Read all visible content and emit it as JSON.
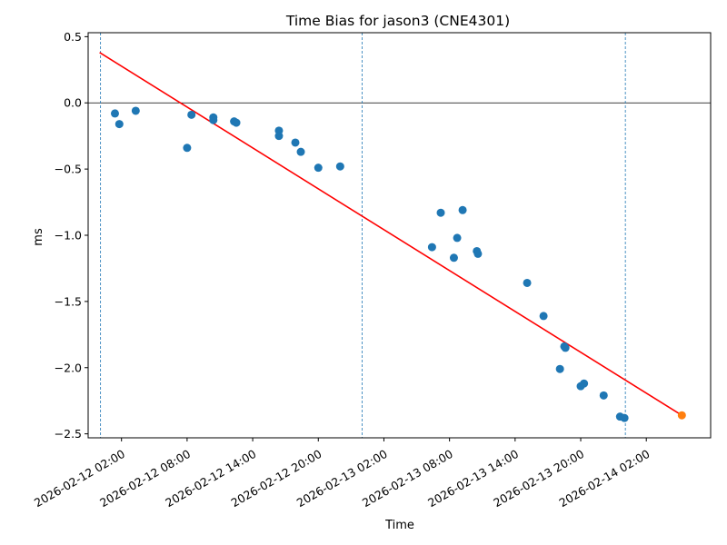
{
  "chart_data": {
    "type": "scatter",
    "title": "Time Bias for jason3 (CNE4301)",
    "xlabel": "Time",
    "ylabel": "ms",
    "x_type": "datetime",
    "xlim": [
      "2026-02-11 22:57",
      "2026-02-14 07:53"
    ],
    "ylim": [
      -2.53,
      0.53
    ],
    "x_ticks": [
      "2026-02-12 02:00",
      "2026-02-12 08:00",
      "2026-02-12 14:00",
      "2026-02-12 20:00",
      "2026-02-13 02:00",
      "2026-02-13 08:00",
      "2026-02-13 14:00",
      "2026-02-13 20:00",
      "2026-02-14 02:00"
    ],
    "y_ticks": [
      0.5,
      0.0,
      -0.5,
      -1.0,
      -1.5,
      -2.0,
      -2.5
    ],
    "y_tick_labels": [
      "0.5",
      "0.0",
      "−0.5",
      "−1.0",
      "−1.5",
      "−2.0",
      "−2.5"
    ],
    "colors": {
      "points": "#1f77b4",
      "fit_line": "#ff0000",
      "predicted": "#ff7f0e",
      "vlines": "#1f77b4",
      "zero_line": "#000000"
    },
    "zero_line": 0,
    "vlines": [
      "2026-02-12 00:05",
      "2026-02-13 00:00",
      "2026-02-14 00:05"
    ],
    "fit_line": {
      "x": [
        "2026-02-12 00:00",
        "2026-02-14 05:15"
      ],
      "y": [
        0.38,
        -2.36
      ]
    },
    "series": [
      {
        "points": [
          {
            "x": "2026-02-12 01:24",
            "y": -0.08
          },
          {
            "x": "2026-02-12 01:48",
            "y": -0.16
          },
          {
            "x": "2026-02-12 03:18",
            "y": -0.06
          },
          {
            "x": "2026-02-12 08:00",
            "y": -0.34
          },
          {
            "x": "2026-02-12 08:24",
            "y": -0.09
          },
          {
            "x": "2026-02-12 10:24",
            "y": -0.11
          },
          {
            "x": "2026-02-12 10:24",
            "y": -0.13
          },
          {
            "x": "2026-02-12 12:18",
            "y": -0.14
          },
          {
            "x": "2026-02-12 12:30",
            "y": -0.15
          },
          {
            "x": "2026-02-12 16:24",
            "y": -0.21
          },
          {
            "x": "2026-02-12 16:24",
            "y": -0.25
          },
          {
            "x": "2026-02-12 17:54",
            "y": -0.3
          },
          {
            "x": "2026-02-12 18:24",
            "y": -0.37
          },
          {
            "x": "2026-02-12 20:00",
            "y": -0.49
          },
          {
            "x": "2026-02-12 22:00",
            "y": -0.48
          },
          {
            "x": "2026-02-13 06:24",
            "y": -1.09
          },
          {
            "x": "2026-02-13 07:12",
            "y": -0.83
          },
          {
            "x": "2026-02-13 08:24",
            "y": -1.17
          },
          {
            "x": "2026-02-13 08:42",
            "y": -1.02
          },
          {
            "x": "2026-02-13 09:12",
            "y": -0.81
          },
          {
            "x": "2026-02-13 10:30",
            "y": -1.12
          },
          {
            "x": "2026-02-13 10:36",
            "y": -1.14
          },
          {
            "x": "2026-02-13 15:06",
            "y": -1.36
          },
          {
            "x": "2026-02-13 16:36",
            "y": -1.61
          },
          {
            "x": "2026-02-13 18:06",
            "y": -2.01
          },
          {
            "x": "2026-02-13 18:30",
            "y": -1.84
          },
          {
            "x": "2026-02-13 18:36",
            "y": -1.85
          },
          {
            "x": "2026-02-13 20:00",
            "y": -2.14
          },
          {
            "x": "2026-02-13 20:18",
            "y": -2.12
          },
          {
            "x": "2026-02-13 22:06",
            "y": -2.21
          },
          {
            "x": "2026-02-13 23:36",
            "y": -2.37
          },
          {
            "x": "2026-02-14 00:00",
            "y": -2.38
          }
        ]
      },
      {
        "points": [
          {
            "x": "2026-02-14 05:15",
            "y": -2.36
          }
        ]
      }
    ]
  }
}
